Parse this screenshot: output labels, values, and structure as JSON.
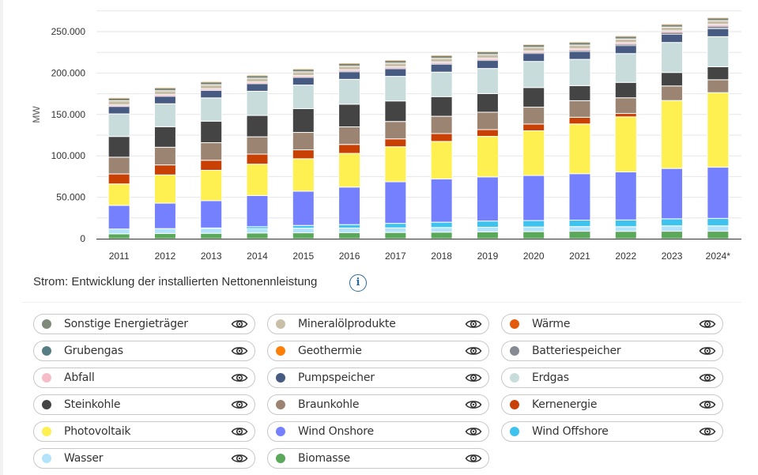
{
  "chart_data": {
    "type": "bar",
    "stacked": true,
    "title": "Strom: Entwicklung der installierten Nettonennleistung",
    "xlabel": "",
    "ylabel": "MW",
    "ylim": [
      0,
      275000
    ],
    "yticks": [
      0,
      50000,
      100000,
      150000,
      200000,
      250000
    ],
    "ytick_labels": [
      "0",
      "50.000",
      "100.000",
      "150.000",
      "200.000",
      "250.000"
    ],
    "grid": true,
    "legend_position": "bottom",
    "categories": [
      "2011",
      "2012",
      "2013",
      "2014",
      "2015",
      "2016",
      "2017",
      "2018",
      "2019",
      "2020",
      "2021",
      "2022",
      "2023",
      "2024*"
    ],
    "series": [
      {
        "name": "Biomasse",
        "color": "#5aa85a",
        "values": [
          5900,
          6300,
          6500,
          6900,
          7100,
          7300,
          7500,
          7900,
          8200,
          8500,
          9000,
          8900,
          9000,
          9000
        ]
      },
      {
        "name": "Wasser",
        "color": "#b3e3fb",
        "values": [
          5600,
          5600,
          5600,
          5600,
          5600,
          5600,
          5600,
          5600,
          5600,
          5600,
          5600,
          5600,
          6500,
          6500
        ]
      },
      {
        "name": "Wind Offshore",
        "color": "#3ec2ee",
        "values": [
          200,
          300,
          900,
          2000,
          3300,
          4100,
          5400,
          6400,
          7500,
          7800,
          7800,
          8100,
          8500,
          9000
        ]
      },
      {
        "name": "Wind Onshore",
        "color": "#7480fe",
        "values": [
          28500,
          30700,
          32900,
          37600,
          41300,
          45300,
          50200,
          52300,
          53300,
          54400,
          56100,
          58000,
          60800,
          61800
        ]
      },
      {
        "name": "Photovoltaik",
        "color": "#fef050",
        "values": [
          25900,
          34100,
          36700,
          37900,
          39200,
          40700,
          42300,
          45200,
          49000,
          54000,
          60000,
          66500,
          82000,
          90000
        ]
      },
      {
        "name": "Kernenergie",
        "color": "#c94004",
        "values": [
          12100,
          12100,
          12100,
          12100,
          10800,
          10800,
          9500,
          9500,
          8100,
          8100,
          8100,
          4100,
          0,
          0
        ]
      },
      {
        "name": "Braunkohle",
        "color": "#9b8572",
        "values": [
          20200,
          21300,
          21200,
          20900,
          21000,
          21200,
          21000,
          20900,
          21000,
          20400,
          20000,
          18900,
          17600,
          15600
        ]
      },
      {
        "name": "Steinkohle",
        "color": "#444444",
        "values": [
          25000,
          24800,
          26000,
          25800,
          28700,
          27400,
          24800,
          23700,
          22500,
          23700,
          18200,
          18600,
          16300,
          15700
        ]
      },
      {
        "name": "Erdgas",
        "color": "#c9dcdc",
        "values": [
          27300,
          27700,
          28100,
          29200,
          28500,
          30000,
          29700,
          29600,
          30300,
          31500,
          31700,
          34800,
          36200,
          36300
        ]
      },
      {
        "name": "Pumpspeicher",
        "color": "#475a82",
        "values": [
          8900,
          9000,
          9000,
          9100,
          9200,
          9200,
          9200,
          9600,
          9600,
          9600,
          9600,
          9600,
          9800,
          9800
        ]
      },
      {
        "name": "Batteriespeicher",
        "color": "#868a93",
        "values": [
          0,
          0,
          0,
          100,
          200,
          300,
          400,
          600,
          700,
          800,
          1000,
          1500,
          2200,
          3000
        ]
      },
      {
        "name": "Abfall",
        "color": "#f6bdc9",
        "values": [
          1700,
          1800,
          1800,
          1800,
          1800,
          1800,
          1800,
          1800,
          1800,
          1800,
          1800,
          1800,
          1800,
          1800
        ]
      },
      {
        "name": "Grubengas",
        "color": "#567c84",
        "values": [
          200,
          200,
          200,
          200,
          200,
          200,
          200,
          200,
          200,
          200,
          200,
          200,
          200,
          200
        ]
      },
      {
        "name": "Mineralölprodukte",
        "color": "#c9bfa8",
        "values": [
          5000,
          4700,
          4800,
          4500,
          4500,
          4300,
          4300,
          4400,
          4500,
          4500,
          4600,
          4500,
          4500,
          4500
        ]
      },
      {
        "name": "Sonstige Energieträger",
        "color": "#7f8979",
        "values": [
          3400,
          3600,
          3600,
          3400,
          3400,
          3600,
          3600,
          3600,
          3600,
          3600,
          3600,
          3500,
          3500,
          3500
        ]
      },
      {
        "name": "Wärme",
        "color": "#e45a0c",
        "values": [
          0,
          0,
          0,
          0,
          0,
          0,
          0,
          0,
          0,
          0,
          0,
          0,
          0,
          0
        ]
      },
      {
        "name": "Geothermie",
        "color": "#fd7f07",
        "values": [
          10,
          10,
          30,
          30,
          30,
          40,
          40,
          40,
          40,
          40,
          40,
          40,
          40,
          40
        ]
      }
    ]
  },
  "caption": {
    "text": "Strom: Entwicklung der installierten Nettonennleistung",
    "info_icon": "info-icon"
  },
  "legend": {
    "items": [
      {
        "label": "Sonstige Energieträger",
        "color": "#7f8979",
        "icon": "eye-icon"
      },
      {
        "label": "Mineralölprodukte",
        "color": "#c9bfa8",
        "icon": "eye-icon"
      },
      {
        "label": "Wärme",
        "color": "#e45a0c",
        "icon": "eye-icon"
      },
      {
        "label": "Grubengas",
        "color": "#567c84",
        "icon": "eye-icon"
      },
      {
        "label": "Geothermie",
        "color": "#fd7f07",
        "icon": "eye-icon"
      },
      {
        "label": "Batteriespeicher",
        "color": "#868a93",
        "icon": "eye-icon"
      },
      {
        "label": "Abfall",
        "color": "#f6bdc9",
        "icon": "eye-icon"
      },
      {
        "label": "Pumpspeicher",
        "color": "#475a82",
        "icon": "eye-icon"
      },
      {
        "label": "Erdgas",
        "color": "#c9dcdc",
        "icon": "eye-icon"
      },
      {
        "label": "Steinkohle",
        "color": "#444444",
        "icon": "eye-icon"
      },
      {
        "label": "Braunkohle",
        "color": "#9b8572",
        "icon": "eye-icon"
      },
      {
        "label": "Kernenergie",
        "color": "#c94004",
        "icon": "eye-icon"
      },
      {
        "label": "Photovoltaik",
        "color": "#fef050",
        "icon": "eye-icon"
      },
      {
        "label": "Wind Onshore",
        "color": "#7480fe",
        "icon": "eye-icon"
      },
      {
        "label": "Wind Offshore",
        "color": "#3ec2ee",
        "icon": "eye-icon"
      },
      {
        "label": "Wasser",
        "color": "#b3e3fb",
        "icon": "eye-icon"
      },
      {
        "label": "Biomasse",
        "color": "#5aa85a",
        "icon": "eye-icon"
      }
    ]
  }
}
